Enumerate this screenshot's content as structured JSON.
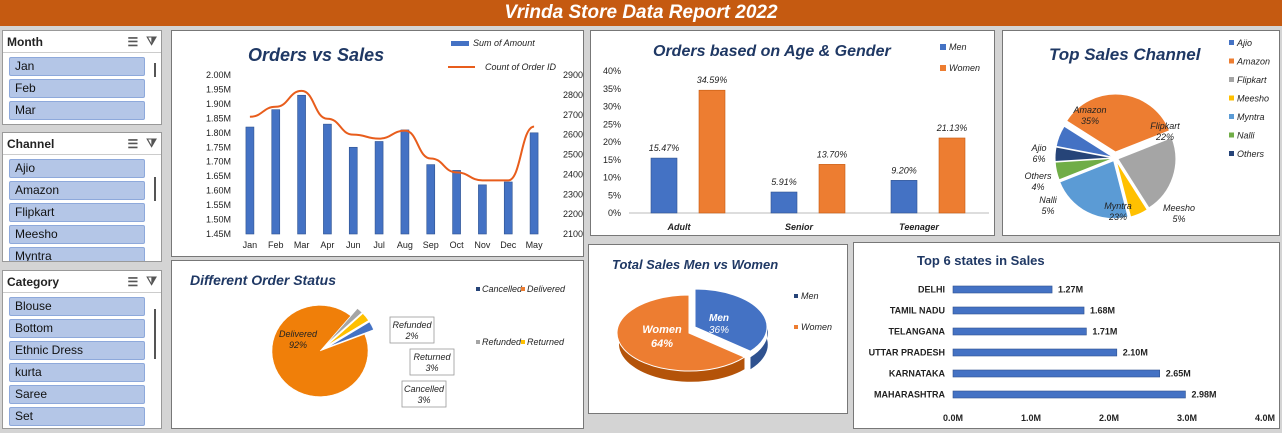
{
  "banner": {
    "title": "Vrinda Store Data Report 2022"
  },
  "slicers": [
    {
      "title": "Month",
      "items": [
        "Jan",
        "Feb",
        "Mar"
      ]
    },
    {
      "title": "Channel",
      "items": [
        "Ajio",
        "Amazon",
        "Flipkart",
        "Meesho",
        "Myntra"
      ]
    },
    {
      "title": "Category",
      "items": [
        "Blouse",
        "Bottom",
        "Ethnic Dress",
        "kurta",
        "Saree",
        "Set"
      ]
    }
  ],
  "chart_data": [
    {
      "type": "bar",
      "title": "Orders vs Sales",
      "categories": [
        "Jan",
        "Feb",
        "Mar",
        "Apr",
        "Jun",
        "Jul",
        "Aug",
        "Sep",
        "Oct",
        "Nov",
        "Dec",
        "May"
      ],
      "series": [
        {
          "name": "Sum of Amount",
          "type": "bar",
          "values": [
            1.82,
            1.88,
            1.93,
            1.83,
            1.75,
            1.77,
            1.81,
            1.69,
            1.67,
            1.62,
            1.63,
            1.8
          ]
        },
        {
          "name": "Count of Order ID",
          "type": "line",
          "values": [
            2690,
            2740,
            2820,
            2680,
            2600,
            2580,
            2620,
            2480,
            2410,
            2370,
            2370,
            2640
          ]
        }
      ],
      "ylim": [
        1.45,
        2.0
      ],
      "yticks": [
        "2.00M",
        "1.95M",
        "1.90M",
        "1.85M",
        "1.80M",
        "1.75M",
        "1.70M",
        "1.65M",
        "1.60M",
        "1.55M",
        "1.50M",
        "1.45M"
      ],
      "y2lim": [
        2100,
        2900
      ],
      "y2ticks": [
        "2900",
        "2800",
        "2700",
        "2600",
        "2500",
        "2400",
        "2300",
        "2200",
        "2100"
      ]
    },
    {
      "type": "bar",
      "title": "Orders based on Age & Gender",
      "categories": [
        "Adult",
        "Senior",
        "Teenager"
      ],
      "series": [
        {
          "name": "Men",
          "values": [
            15.47,
            5.91,
            9.2
          ],
          "labels": [
            "15.47%",
            "5.91%",
            "9.20%"
          ]
        },
        {
          "name": "Women",
          "values": [
            34.59,
            13.7,
            21.13
          ],
          "labels": [
            "34.59%",
            "13.70%",
            "21.13%"
          ]
        }
      ],
      "ylim": [
        0,
        40
      ],
      "yticks": [
        "40%",
        "35%",
        "30%",
        "25%",
        "20%",
        "15%",
        "10%",
        "5%",
        "0%"
      ]
    },
    {
      "type": "pie",
      "title": "Top Sales Channel",
      "legend": [
        "Ajio",
        "Amazon",
        "Flipkart",
        "Meesho",
        "Myntra",
        "Nalli",
        "Others"
      ],
      "slices": [
        {
          "name": "Amazon",
          "value": 35,
          "label": "Amazon",
          "pct": "35%"
        },
        {
          "name": "Flipkart",
          "value": 22,
          "label": "Flipkart",
          "pct": "22%"
        },
        {
          "name": "Meesho",
          "value": 5,
          "label": "Meesho",
          "pct": "5%"
        },
        {
          "name": "Myntra",
          "value": 23,
          "label": "Myntra",
          "pct": "23%"
        },
        {
          "name": "Nalli",
          "value": 5,
          "label": "Nalli",
          "pct": "5%"
        },
        {
          "name": "Others",
          "value": 4,
          "label": "Others",
          "pct": "4%"
        },
        {
          "name": "Ajio",
          "value": 6,
          "label": "Ajio",
          "pct": "6%"
        }
      ]
    },
    {
      "type": "pie",
      "title": "Different Order Status",
      "legend": [
        "Cancelled",
        "Delivered",
        "Refunded",
        "Returned"
      ],
      "slices": [
        {
          "name": "Delivered",
          "value": 92,
          "label": "Delivered",
          "pct": "92%"
        },
        {
          "name": "Refunded",
          "value": 2,
          "label": "Refunded",
          "pct": "2%"
        },
        {
          "name": "Returned",
          "value": 3,
          "label": "Returned",
          "pct": "3%"
        },
        {
          "name": "Cancelled",
          "value": 3,
          "label": "Cancelled",
          "pct": "3%"
        }
      ]
    },
    {
      "type": "pie",
      "title": "Total Sales Men vs Women",
      "legend": [
        "Men",
        "Women"
      ],
      "slices": [
        {
          "name": "Men",
          "value": 36,
          "label": "Men",
          "pct": "36%"
        },
        {
          "name": "Women",
          "value": 64,
          "label": "Women",
          "pct": "64%"
        }
      ]
    },
    {
      "type": "bar",
      "orientation": "horizontal",
      "title": "Top 6 states in Sales",
      "categories": [
        "DELHI",
        "TAMIL NADU",
        "TELANGANA",
        "UTTAR PRADESH",
        "KARNATAKA",
        "MAHARASHTRA"
      ],
      "values": [
        1.27,
        1.68,
        1.71,
        2.1,
        2.65,
        2.98
      ],
      "labels": [
        "1.27M",
        "1.68M",
        "1.71M",
        "2.10M",
        "2.65M",
        "2.98M"
      ],
      "xlim": [
        0,
        4
      ],
      "xticks": [
        "0.0M",
        "1.0M",
        "2.0M",
        "3.0M",
        "4.0M"
      ]
    }
  ],
  "colors": {
    "banner": "#c55a11",
    "blue": "#4472c4",
    "orange": "#ed7d31",
    "navy": "#1f3864",
    "gray": "#a5a5a5",
    "gold": "#ffc000",
    "lightblue": "#5b9bd5",
    "green": "#70ad47",
    "darkblue": "#264478"
  },
  "icons": [
    "multi-select-icon",
    "clear-filter-icon"
  ]
}
